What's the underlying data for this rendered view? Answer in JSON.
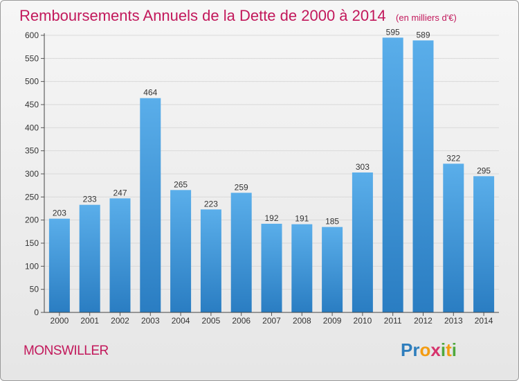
{
  "header": {
    "title": "Remboursements Annuels de la Dette de 2000 à 2014",
    "unit": "(en milliers d'€)"
  },
  "footer": {
    "commune": "MONSWILLER",
    "logo_text": "Proxiti"
  },
  "colors": {
    "title": "#c2185b",
    "bar_top": "#5aaeea",
    "bar_bottom": "#2a7dc2",
    "grid": "#d9d9d9"
  },
  "chart_data": {
    "type": "bar",
    "title": "Remboursements Annuels de la Dette de 2000 à 2014",
    "subtitle": "(en milliers d'€)",
    "categories": [
      "2000",
      "2001",
      "2002",
      "2003",
      "2004",
      "2005",
      "2006",
      "2007",
      "2008",
      "2009",
      "2010",
      "2011",
      "2012",
      "2013",
      "2014"
    ],
    "values": [
      203,
      233,
      247,
      464,
      265,
      223,
      259,
      192,
      191,
      185,
      303,
      595,
      589,
      322,
      295
    ],
    "ylim": [
      0,
      600
    ],
    "yticks": [
      0,
      50,
      100,
      150,
      200,
      250,
      300,
      350,
      400,
      450,
      500,
      550,
      600
    ],
    "grid": true,
    "data_labels": true
  }
}
